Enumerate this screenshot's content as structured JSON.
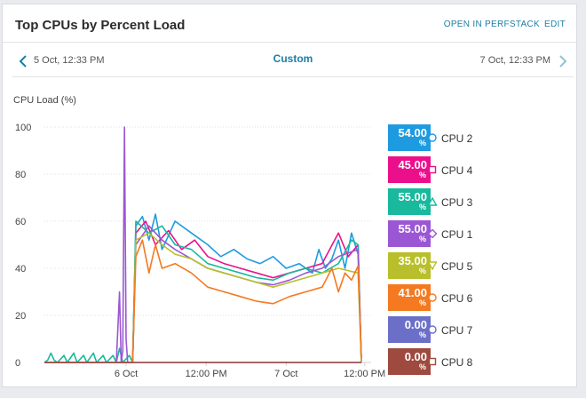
{
  "widget": {
    "title": "Top CPUs by Percent Load",
    "open_in_perfstack": "OPEN IN PERFSTACK",
    "edit": "EDIT"
  },
  "time_nav": {
    "start": "5 Oct, 12:33 PM",
    "mode": "Custom",
    "end": "7 Oct, 12:33 PM",
    "prev_icon": "chevron-left-icon",
    "next_icon": "chevron-right-icon"
  },
  "chart_data": {
    "type": "line",
    "ylabel": "CPU Load (%)",
    "ylim": [
      0,
      100
    ],
    "y_ticks": [
      "0",
      "20",
      "40",
      "60",
      "80",
      "100"
    ],
    "x_ticks": [
      "6 Oct",
      "12:00 PM",
      "7 Oct",
      "12:00 PM"
    ],
    "grid": true,
    "legend_placement": "right",
    "series": [
      {
        "name": "CPU 2",
        "current": "54.00",
        "unit": "%",
        "color": "#1e9be0",
        "marker": "circle",
        "values": [
          [
            0,
            0
          ],
          [
            27,
            0
          ],
          [
            28,
            58
          ],
          [
            30,
            62
          ],
          [
            32,
            52
          ],
          [
            34,
            63
          ],
          [
            36,
            48
          ],
          [
            40,
            60
          ],
          [
            45,
            55
          ],
          [
            50,
            50
          ],
          [
            54,
            45
          ],
          [
            58,
            48
          ],
          [
            62,
            44
          ],
          [
            66,
            42
          ],
          [
            70,
            45
          ],
          [
            74,
            40
          ],
          [
            78,
            42
          ],
          [
            82,
            38
          ],
          [
            84,
            48
          ],
          [
            86,
            40
          ],
          [
            88,
            44
          ],
          [
            90,
            52
          ],
          [
            92,
            40
          ],
          [
            94,
            55
          ],
          [
            96,
            46
          ],
          [
            97,
            0
          ]
        ]
      },
      {
        "name": "CPU 4",
        "current": "45.00",
        "unit": "%",
        "color": "#ec0f8c",
        "marker": "square",
        "values": [
          [
            0,
            0
          ],
          [
            27,
            0
          ],
          [
            28,
            55
          ],
          [
            31,
            60
          ],
          [
            34,
            50
          ],
          [
            38,
            56
          ],
          [
            42,
            48
          ],
          [
            46,
            52
          ],
          [
            50,
            45
          ],
          [
            55,
            42
          ],
          [
            60,
            40
          ],
          [
            65,
            38
          ],
          [
            70,
            36
          ],
          [
            75,
            38
          ],
          [
            80,
            40
          ],
          [
            85,
            42
          ],
          [
            90,
            55
          ],
          [
            93,
            45
          ],
          [
            96,
            50
          ],
          [
            97,
            0
          ]
        ]
      },
      {
        "name": "CPU 3",
        "current": "55.00",
        "unit": "%",
        "color": "#18b99d",
        "marker": "triangle",
        "values": [
          [
            0,
            0
          ],
          [
            1,
            1
          ],
          [
            2,
            4
          ],
          [
            3,
            1
          ],
          [
            4,
            0
          ],
          [
            6,
            3
          ],
          [
            7,
            0
          ],
          [
            9,
            4
          ],
          [
            10,
            0
          ],
          [
            12,
            3
          ],
          [
            13,
            0
          ],
          [
            15,
            4
          ],
          [
            16,
            0
          ],
          [
            18,
            3
          ],
          [
            19,
            0
          ],
          [
            21,
            3
          ],
          [
            22,
            0
          ],
          [
            23,
            6
          ],
          [
            24,
            0
          ],
          [
            26,
            3
          ],
          [
            27,
            0
          ],
          [
            28,
            60
          ],
          [
            32,
            55
          ],
          [
            36,
            58
          ],
          [
            40,
            50
          ],
          [
            45,
            48
          ],
          [
            50,
            42
          ],
          [
            55,
            40
          ],
          [
            60,
            38
          ],
          [
            65,
            36
          ],
          [
            70,
            35
          ],
          [
            75,
            38
          ],
          [
            80,
            40
          ],
          [
            85,
            38
          ],
          [
            90,
            42
          ],
          [
            94,
            52
          ],
          [
            96,
            50
          ],
          [
            97,
            0
          ]
        ]
      },
      {
        "name": "CPU 1",
        "current": "55.00",
        "unit": "%",
        "color": "#9b57d3",
        "marker": "diamond",
        "values": [
          [
            0,
            0
          ],
          [
            22,
            0
          ],
          [
            23,
            30
          ],
          [
            23.5,
            0
          ],
          [
            24,
            5
          ],
          [
            24.5,
            100
          ],
          [
            25,
            10
          ],
          [
            25.5,
            0
          ],
          [
            27,
            0
          ],
          [
            28,
            50
          ],
          [
            32,
            58
          ],
          [
            36,
            52
          ],
          [
            40,
            48
          ],
          [
            45,
            44
          ],
          [
            50,
            40
          ],
          [
            55,
            38
          ],
          [
            60,
            36
          ],
          [
            65,
            34
          ],
          [
            70,
            33
          ],
          [
            75,
            35
          ],
          [
            80,
            38
          ],
          [
            85,
            40
          ],
          [
            90,
            45
          ],
          [
            96,
            48
          ],
          [
            97,
            0
          ]
        ]
      },
      {
        "name": "CPU 5",
        "current": "35.00",
        "unit": "%",
        "color": "#b8bf2a",
        "marker": "inverted-triangle",
        "values": [
          [
            0,
            0
          ],
          [
            27,
            0
          ],
          [
            28,
            52
          ],
          [
            32,
            55
          ],
          [
            36,
            50
          ],
          [
            40,
            46
          ],
          [
            45,
            44
          ],
          [
            50,
            40
          ],
          [
            55,
            38
          ],
          [
            60,
            36
          ],
          [
            65,
            34
          ],
          [
            70,
            32
          ],
          [
            75,
            34
          ],
          [
            80,
            36
          ],
          [
            85,
            38
          ],
          [
            90,
            40
          ],
          [
            96,
            38
          ],
          [
            97,
            0
          ]
        ]
      },
      {
        "name": "CPU 6",
        "current": "41.00",
        "unit": "%",
        "color": "#f47920",
        "marker": "circle",
        "values": [
          [
            0,
            0
          ],
          [
            27,
            0
          ],
          [
            28,
            45
          ],
          [
            30,
            52
          ],
          [
            32,
            38
          ],
          [
            34,
            50
          ],
          [
            36,
            40
          ],
          [
            40,
            42
          ],
          [
            45,
            38
          ],
          [
            50,
            32
          ],
          [
            55,
            30
          ],
          [
            60,
            28
          ],
          [
            65,
            26
          ],
          [
            70,
            25
          ],
          [
            75,
            28
          ],
          [
            80,
            30
          ],
          [
            85,
            32
          ],
          [
            88,
            40
          ],
          [
            90,
            30
          ],
          [
            92,
            38
          ],
          [
            94,
            35
          ],
          [
            96,
            41
          ],
          [
            97,
            2
          ]
        ]
      },
      {
        "name": "CPU 7",
        "current": "0.00",
        "unit": "%",
        "color": "#6b6fc7",
        "marker": "circle",
        "values": [
          [
            0,
            0
          ],
          [
            97,
            0
          ]
        ]
      },
      {
        "name": "CPU 8",
        "current": "0.00",
        "unit": "%",
        "color": "#9e4a3f",
        "marker": "square",
        "values": [
          [
            0,
            0
          ],
          [
            97,
            0
          ]
        ]
      }
    ]
  }
}
